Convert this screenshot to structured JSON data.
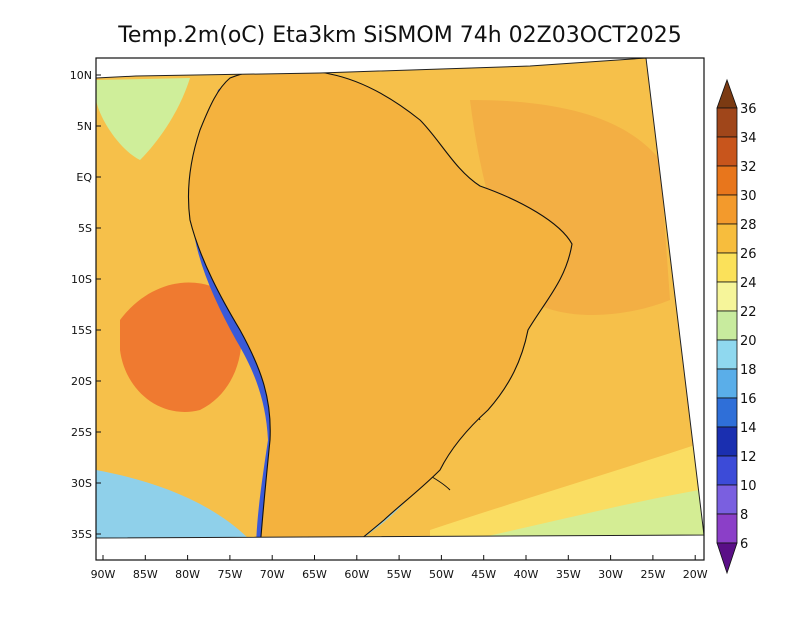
{
  "title": "Temp.2m(oC) Eta3km SiSMOM 74h 02Z03OCT2025",
  "axes": {
    "y_ticks": [
      "10N",
      "5N",
      "EQ",
      "5S",
      "10S",
      "15S",
      "20S",
      "25S",
      "30S",
      "35S"
    ],
    "x_ticks": [
      "90W",
      "85W",
      "80W",
      "75W",
      "70W",
      "65W",
      "60W",
      "55W",
      "50W",
      "45W",
      "40W",
      "35W",
      "30W",
      "25W",
      "20W"
    ]
  },
  "colorbar": {
    "labels": [
      "36",
      "34",
      "32",
      "30",
      "28",
      "26",
      "24",
      "22",
      "20",
      "18",
      "16",
      "14",
      "12",
      "10",
      "8",
      "6"
    ],
    "colors": [
      "#7b3a12",
      "#a0461a",
      "#c8551c",
      "#e8761c",
      "#f39a2c",
      "#f7bd3d",
      "#fbe15a",
      "#f6f59a",
      "#c8eb9e",
      "#8fd8ef",
      "#5aaee9",
      "#2f6fd8",
      "#1a2fb0",
      "#3c4bd8",
      "#7a5fe0",
      "#8b3fc8",
      "#5a0f87"
    ]
  },
  "palette": {
    "ocean_warm": "#f0a040",
    "ocean_hot": "#ef7a30",
    "ocean_mild": "#f6c04a",
    "ocean_cool": "#fbe468",
    "ocean_cold": "#cfee9a",
    "land_warm": "#f4b23e",
    "andes_cold": "#5a1590",
    "andes_mid": "#3a5ad8",
    "highland_cool": "#8fd0ea"
  }
}
